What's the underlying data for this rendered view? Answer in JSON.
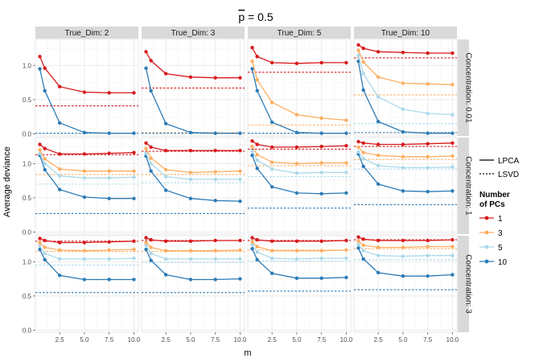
{
  "chart_data": {
    "type": "line",
    "title": "p̄ = 0.5",
    "title_overline_char": "p",
    "title_rest": " = 0.5",
    "xlabel": "m",
    "ylabel": "Average deviance",
    "x": [
      0.5,
      1,
      2.5,
      5,
      7.5,
      10
    ],
    "xticks": [
      2.5,
      5.0,
      7.5,
      10.0
    ],
    "xtick_labels": [
      "2.5",
      "5.0",
      "7.5",
      "10.0"
    ],
    "xlim": [
      0.05,
      10.45
    ],
    "yticks": [
      0.0,
      0.5,
      1.0
    ],
    "ytick_labels": [
      "0.0",
      "0.5",
      "1.0"
    ],
    "ylim": [
      -0.03,
      1.38
    ],
    "columns": [
      "True_Dim: 2",
      "True_Dim: 3",
      "True_Dim: 5",
      "True_Dim: 10"
    ],
    "rows": [
      "Concentration: 0.01",
      "Concentration: 1",
      "Concentration: 3"
    ],
    "colors": {
      "1": "#d7191c",
      "3": "#fdae61",
      "5": "#abd9e9",
      "10": "#2c7bb6"
    },
    "grid_color": "#ebebeb",
    "panel_bg": "#ffffff",
    "strip_bg": "#d9d9d9",
    "legend": {
      "method_lpca": "LPCA",
      "method_lsvd": "LSVD",
      "pcs_title_1": "Number",
      "pcs_title_2": "of PCs",
      "pcs": [
        "1",
        "3",
        "5",
        "10"
      ]
    },
    "panels": [
      [
        {
          "lpca": {
            "1": [
              1.13,
              0.96,
              0.69,
              0.61,
              0.6,
              0.6
            ],
            "10": [
              0.95,
              0.63,
              0.16,
              0.02,
              0.01,
              0.01
            ]
          },
          "lsvd": {
            "1": 0.41,
            "10": 0.01
          }
        },
        {
          "lpca": {
            "1": [
              1.2,
              1.07,
              0.88,
              0.83,
              0.82,
              0.82
            ],
            "10": [
              0.96,
              0.63,
              0.15,
              0.02,
              0.01,
              0.01
            ]
          },
          "lsvd": {
            "1": 0.67,
            "3": 0.02,
            "10": 0.01
          }
        },
        {
          "lpca": {
            "1": [
              1.26,
              1.13,
              1.04,
              1.03,
              1.04,
              1.04
            ],
            "3": [
              1.06,
              0.79,
              0.46,
              0.28,
              0.23,
              0.2
            ],
            "10": [
              0.95,
              0.63,
              0.17,
              0.02,
              0.01,
              0.01
            ]
          },
          "lsvd": {
            "1": 0.9,
            "3": 0.13,
            "10": 0.01
          }
        },
        {
          "lpca": {
            "1": [
              1.3,
              1.25,
              1.2,
              1.19,
              1.18,
              1.18
            ],
            "3": [
              1.22,
              1.05,
              0.83,
              0.74,
              0.73,
              0.72
            ],
            "5": [
              1.15,
              0.88,
              0.54,
              0.36,
              0.3,
              0.28
            ],
            "10": [
              1.06,
              0.64,
              0.18,
              0.03,
              0.01,
              0.01
            ]
          },
          "lsvd": {
            "1": 1.11,
            "3": 0.57,
            "5": 0.15,
            "10": 0.02
          }
        }
      ],
      [
        {
          "lpca": {
            "1": [
              1.28,
              1.22,
              1.14,
              1.14,
              1.15,
              1.16
            ],
            "3": [
              1.2,
              1.07,
              0.92,
              0.89,
              0.89,
              0.89
            ],
            "5": [
              1.15,
              1.0,
              0.82,
              0.79,
              0.79,
              0.8
            ],
            "10": [
              1.12,
              0.91,
              0.62,
              0.51,
              0.49,
              0.49
            ]
          },
          "lsvd": {
            "1": 1.13,
            "3": 0.84,
            "5": 0.7,
            "10": 0.27
          }
        },
        {
          "lpca": {
            "1": [
              1.3,
              1.24,
              1.19,
              1.19,
              1.19,
              1.19
            ],
            "3": [
              1.22,
              1.08,
              0.91,
              0.87,
              0.88,
              0.89
            ],
            "5": [
              1.15,
              1.0,
              0.81,
              0.77,
              0.77,
              0.77
            ],
            "10": [
              1.11,
              0.89,
              0.61,
              0.49,
              0.46,
              0.45
            ]
          },
          "lsvd": {
            "1": 1.18,
            "3": 0.84,
            "5": 0.72,
            "10": 0.27
          }
        },
        {
          "lpca": {
            "1": [
              1.33,
              1.28,
              1.24,
              1.24,
              1.25,
              1.26
            ],
            "3": [
              1.25,
              1.13,
              1.02,
              1.0,
              1.01,
              1.01
            ],
            "5": [
              1.18,
              1.05,
              0.92,
              0.86,
              0.87,
              0.87
            ],
            "10": [
              1.12,
              0.93,
              0.66,
              0.57,
              0.56,
              0.57
            ]
          },
          "lsvd": {
            "1": 1.21,
            "3": 0.97,
            "5": 0.81,
            "10": 0.35
          }
        },
        {
          "lpca": {
            "1": [
              1.32,
              1.3,
              1.28,
              1.28,
              1.29,
              1.3
            ],
            "3": [
              1.24,
              1.16,
              1.12,
              1.1,
              1.1,
              1.11
            ],
            "5": [
              1.17,
              1.07,
              0.97,
              0.94,
              0.94,
              0.95
            ],
            "10": [
              1.14,
              0.96,
              0.7,
              0.6,
              0.59,
              0.6
            ]
          },
          "lsvd": {
            "1": 1.25,
            "3": 1.06,
            "5": 0.92,
            "10": 0.4
          }
        }
      ],
      [
        {
          "lpca": {
            "1": [
              1.34,
              1.31,
              1.28,
              1.28,
              1.29,
              1.3
            ],
            "3": [
              1.28,
              1.21,
              1.17,
              1.16,
              1.17,
              1.18
            ],
            "5": [
              1.23,
              1.12,
              1.04,
              1.04,
              1.04,
              1.05
            ],
            "10": [
              1.18,
              1.03,
              0.8,
              0.74,
              0.74,
              0.74
            ]
          },
          "lsvd": {
            "1": 1.3,
            "3": 1.15,
            "5": 0.95,
            "10": 0.55
          }
        },
        {
          "lpca": {
            "1": [
              1.35,
              1.32,
              1.3,
              1.3,
              1.31,
              1.31
            ],
            "3": [
              1.28,
              1.21,
              1.16,
              1.16,
              1.16,
              1.17
            ],
            "5": [
              1.24,
              1.12,
              1.04,
              1.04,
              1.04,
              1.04
            ],
            "10": [
              1.18,
              1.02,
              0.81,
              0.74,
              0.74,
              0.75
            ]
          },
          "lsvd": {
            "1": 1.31,
            "3": 1.15,
            "5": 0.99,
            "10": 0.55
          }
        },
        {
          "lpca": {
            "1": [
              1.35,
              1.32,
              1.3,
              1.3,
              1.3,
              1.31
            ],
            "3": [
              1.29,
              1.22,
              1.16,
              1.16,
              1.16,
              1.17
            ],
            "5": [
              1.25,
              1.14,
              1.05,
              1.04,
              1.05,
              1.05
            ],
            "10": [
              1.19,
              1.03,
              0.83,
              0.76,
              0.76,
              0.77
            ]
          },
          "lsvd": {
            "1": 1.31,
            "3": 1.17,
            "5": 1.01,
            "10": 0.57
          }
        },
        {
          "lpca": {
            "1": [
              1.36,
              1.33,
              1.31,
              1.31,
              1.31,
              1.32
            ],
            "3": [
              1.3,
              1.24,
              1.21,
              1.21,
              1.22,
              1.22
            ],
            "5": [
              1.25,
              1.16,
              1.09,
              1.08,
              1.09,
              1.09
            ],
            "10": [
              1.2,
              1.04,
              0.84,
              0.79,
              0.79,
              0.81
            ]
          },
          "lsvd": {
            "1": 1.32,
            "3": 1.19,
            "5": 1.03,
            "10": 0.59
          }
        }
      ]
    ]
  }
}
